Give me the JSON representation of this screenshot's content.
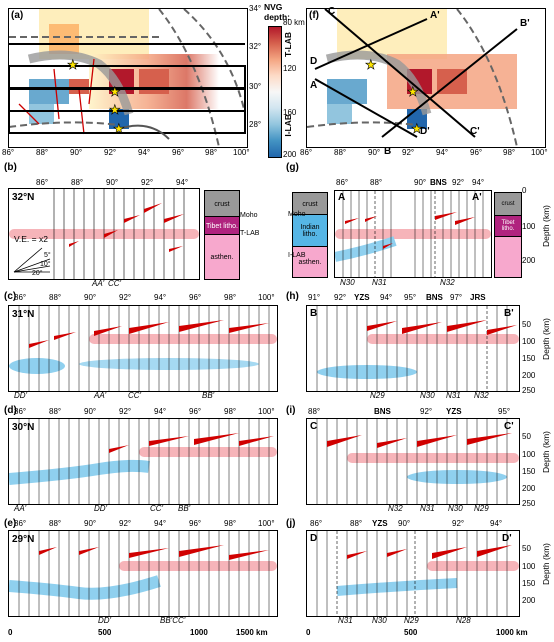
{
  "panels": {
    "a": "(a)",
    "f": "(f)",
    "b": "(b)",
    "c": "(c)",
    "d": "(d)",
    "e": "(e)",
    "g": "(g)",
    "h": "(h)",
    "i": "(i)",
    "j": "(j)"
  },
  "map": {
    "lon_ticks": [
      "86°",
      "88°",
      "90°",
      "92°",
      "94°",
      "96°",
      "98°",
      "100°"
    ],
    "lat_ticks": [
      "34°",
      "32°",
      "30°",
      "28°"
    ],
    "profile_letters": [
      "C",
      "A'",
      "B'",
      "D",
      "A",
      "B",
      "D'",
      "C'"
    ]
  },
  "colorbar": {
    "title_line1": "NVG",
    "title_line2": "depth:",
    "ticks": [
      "80 km",
      "120",
      "160",
      "200"
    ],
    "label_top": "T-LAB",
    "label_bottom": "I-LAB",
    "colors": [
      "#b2182b",
      "#d6604d",
      "#f4a582",
      "#fddbc7",
      "#f7f7f7",
      "#d1e5f0",
      "#92c5de",
      "#4393c3",
      "#2166ac"
    ]
  },
  "left_profiles": [
    {
      "lat": "32°N",
      "ticks": [
        "86°",
        "88°",
        "90°",
        "92°",
        "94°"
      ],
      "marks": [
        "AA'",
        "CC'"
      ]
    },
    {
      "lat": "31°N",
      "ticks": [
        "86°",
        "88°",
        "90°",
        "92°",
        "94°",
        "96°",
        "98°",
        "100°"
      ],
      "marks": [
        "DD'",
        "AA'",
        "CC'",
        "BB'"
      ]
    },
    {
      "lat": "30°N",
      "ticks": [
        "86°",
        "88°",
        "90°",
        "92°",
        "94°",
        "96°",
        "98°",
        "100°"
      ],
      "marks": [
        "AA'",
        "DD'",
        "CC'",
        "BB'"
      ]
    },
    {
      "lat": "29°N",
      "ticks": [
        "86°",
        "88°",
        "90°",
        "92°",
        "94°",
        "96°",
        "98°",
        "100°"
      ],
      "marks": [
        "DD'",
        "BB'CC'"
      ]
    }
  ],
  "b_extra": {
    "ve": "V.E. = x2",
    "angles": [
      "5°",
      "10°",
      "20°"
    ],
    "legend": [
      "crust",
      "Moho",
      "Tibet litho.",
      "T-LAB",
      "asthen."
    ]
  },
  "g_extra": {
    "legend": [
      "crust",
      "Moho",
      "Indian litho.",
      "I-LAB",
      "asthen.",
      "Tibet litho.",
      "crust"
    ]
  },
  "right_profiles": [
    {
      "ends": [
        "A",
        "A'"
      ],
      "ticks": [
        "86°",
        "88°",
        "90°",
        "BNS",
        "92°",
        "94°"
      ],
      "marks": [
        "N30",
        "N31",
        "N32"
      ]
    },
    {
      "ends": [
        "B",
        "B'"
      ],
      "ticks": [
        "91°",
        "92°",
        "YZS",
        "94°",
        "95°",
        "BNS",
        "97°",
        "JRS"
      ],
      "marks": [
        "N29",
        "N30",
        "N31",
        "N32"
      ]
    },
    {
      "ends": [
        "C",
        "C'"
      ],
      "ticks": [
        "88°",
        "BNS",
        "92°",
        "YZS",
        "95°"
      ],
      "marks": [
        "N32",
        "N31",
        "N30",
        "N29"
      ]
    },
    {
      "ends": [
        "D",
        "D'"
      ],
      "ticks": [
        "86°",
        "88°",
        "YZS",
        "90°",
        "92°",
        "94°"
      ],
      "marks": [
        "N31",
        "N30",
        "N29",
        "N28"
      ]
    }
  ],
  "depth_axis": {
    "label": "Depth (km)",
    "ticks": [
      "0",
      "50",
      "100",
      "150",
      "200",
      "250"
    ]
  },
  "bottom_axis_left": [
    "0",
    "500",
    "1000",
    "1500 km"
  ],
  "bottom_axis_right": [
    "0",
    "500",
    "1000 km"
  ]
}
